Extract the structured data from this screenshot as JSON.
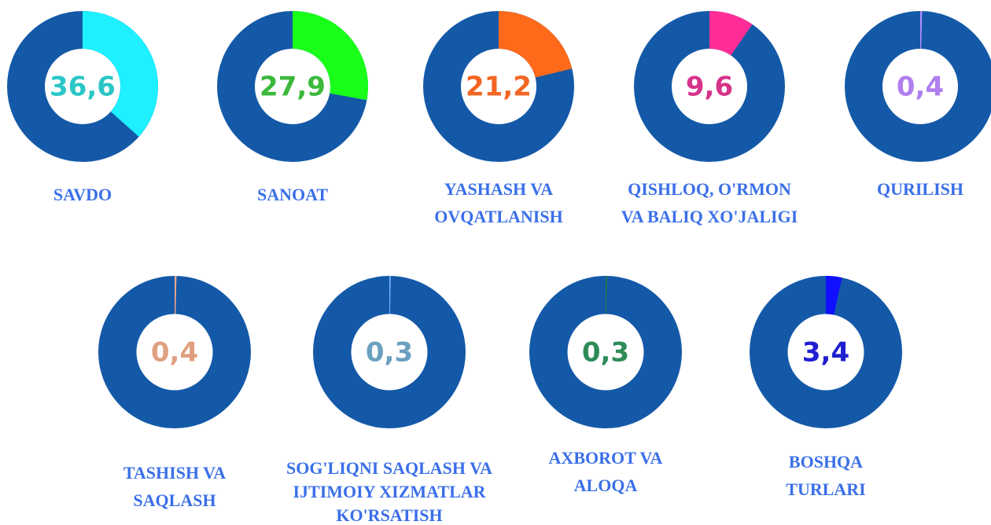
{
  "chart_data": [
    {
      "type": "donut",
      "title": [
        "SAVDO"
      ],
      "values": [
        36.6
      ],
      "value_labels": [
        "36,6"
      ],
      "color": "#1ef0ff",
      "label_color": "#2bc6c6",
      "track_color": "#1459a8"
    },
    {
      "type": "donut",
      "title": [
        "SANOAT"
      ],
      "values": [
        27.9
      ],
      "value_labels": [
        "27,9"
      ],
      "color": "#1aff1a",
      "label_color": "#3cb83c",
      "track_color": "#1459a8"
    },
    {
      "type": "donut",
      "title": [
        "YASHASH VA",
        "OVQATLANISH"
      ],
      "values": [
        21.2
      ],
      "value_labels": [
        "21,2"
      ],
      "color": "#ff6a1a",
      "label_color": "#f26522",
      "track_color": "#1459a8"
    },
    {
      "type": "donut",
      "title": [
        "QISHLOQ, O'RMON",
        "VA BALIQ XO'JALIGI"
      ],
      "values": [
        9.6
      ],
      "value_labels": [
        "9,6"
      ],
      "color": "#ff2d95",
      "label_color": "#d6338a",
      "track_color": "#1459a8"
    },
    {
      "type": "donut",
      "title": [
        "QURILISH"
      ],
      "values": [
        0.4
      ],
      "value_labels": [
        "0,4"
      ],
      "color": "#b48cff",
      "label_color": "#b07ef0",
      "track_color": "#1459a8"
    },
    {
      "type": "donut",
      "title": [
        "TASHISH VA",
        "SAQLASH"
      ],
      "values": [
        0.4
      ],
      "value_labels": [
        "0,4"
      ],
      "color": "#f4a78a",
      "label_color": "#e0a080",
      "track_color": "#1459a8"
    },
    {
      "type": "donut",
      "title": [
        "SOG'LIQNI SAQLASH VA",
        "IJTIMOIY XIZMATLAR",
        "KO'RSATISH"
      ],
      "values": [
        0.3
      ],
      "value_labels": [
        "0,3"
      ],
      "color": "#7ab0ff",
      "label_color": "#6aa0c0",
      "track_color": "#1459a8"
    },
    {
      "type": "donut",
      "title": [
        "AXBOROT VA",
        "ALOQA"
      ],
      "values": [
        0.3
      ],
      "value_labels": [
        "0,3"
      ],
      "color": "#1f7a4a",
      "label_color": "#2e8b57",
      "track_color": "#1459a8"
    },
    {
      "type": "donut",
      "title": [
        "BOSHQA",
        "TURLARI"
      ],
      "values": [
        3.4
      ],
      "value_labels": [
        "3,4"
      ],
      "color": "#1010ff",
      "label_color": "#2020d0",
      "track_color": "#1459a8"
    }
  ]
}
